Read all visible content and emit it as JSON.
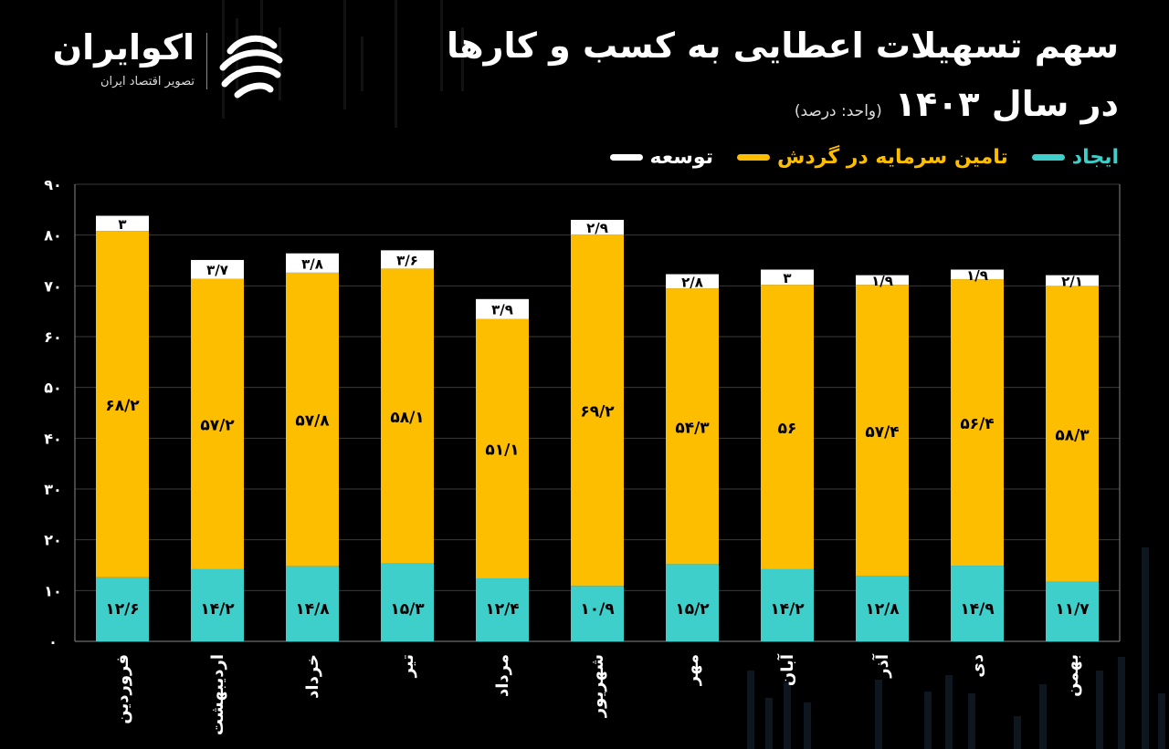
{
  "logo": {
    "name": "اکوایران",
    "tagline": "تصویر اقتصاد ایران"
  },
  "header": {
    "title_line1": "سهم تسهیلات اعطایی به کسب و کارها",
    "title_line2": "در سال ۱۴۰۳",
    "unit": "(واحد: درصد)"
  },
  "colors": {
    "ijad": "#3ECFCB",
    "tamin": "#FDBE00",
    "tose": "#FFFFFF",
    "grid": "#3a3a3a",
    "axis": "#888888"
  },
  "chart_data": {
    "type": "bar",
    "stacked": true,
    "categories": [
      "فروردین",
      "اردیبهشت",
      "خرداد",
      "تیر",
      "مرداد",
      "شهریور",
      "مهر",
      "آبان",
      "آذر",
      "دی",
      "بهمن"
    ],
    "series": [
      {
        "name": "ایجاد",
        "color": "#3ECFCB",
        "values": [
          12.6,
          14.2,
          14.8,
          15.3,
          12.4,
          10.9,
          15.2,
          14.2,
          12.8,
          14.9,
          11.7
        ],
        "labels": [
          "۱۲/۶",
          "۱۴/۲",
          "۱۴/۸",
          "۱۵/۳",
          "۱۲/۴",
          "۱۰/۹",
          "۱۵/۲",
          "۱۴/۲",
          "۱۲/۸",
          "۱۴/۹",
          "۱۱/۷"
        ]
      },
      {
        "name": "تامین سرمایه در گردش",
        "color": "#FDBE00",
        "values": [
          68.2,
          57.2,
          57.8,
          58.1,
          51.1,
          69.2,
          54.3,
          56,
          57.4,
          56.4,
          58.3
        ],
        "labels": [
          "۶۸/۲",
          "۵۷/۲",
          "۵۷/۸",
          "۵۸/۱",
          "۵۱/۱",
          "۶۹/۲",
          "۵۴/۳",
          "۵۶",
          "۵۷/۴",
          "۵۶/۴",
          "۵۸/۳"
        ]
      },
      {
        "name": "توسعه",
        "color": "#FFFFFF",
        "values": [
          3,
          3.7,
          3.8,
          3.6,
          3.9,
          2.9,
          2.8,
          3,
          1.9,
          1.9,
          2.1
        ],
        "labels": [
          "۳",
          "۳/۷",
          "۳/۸",
          "۳/۶",
          "۳/۹",
          "۲/۹",
          "۲/۸",
          "۳",
          "۱/۹",
          "۱/۹",
          "۲/۱"
        ]
      }
    ],
    "ylim": [
      0,
      90
    ],
    "yticks": [
      0,
      10,
      20,
      30,
      40,
      50,
      60,
      70,
      80,
      90
    ],
    "ytick_labels": [
      "۰",
      "۱۰",
      "۲۰",
      "۳۰",
      "۴۰",
      "۵۰",
      "۶۰",
      "۷۰",
      "۸۰",
      "۹۰"
    ],
    "grid": true,
    "legend_position": "top-right"
  }
}
